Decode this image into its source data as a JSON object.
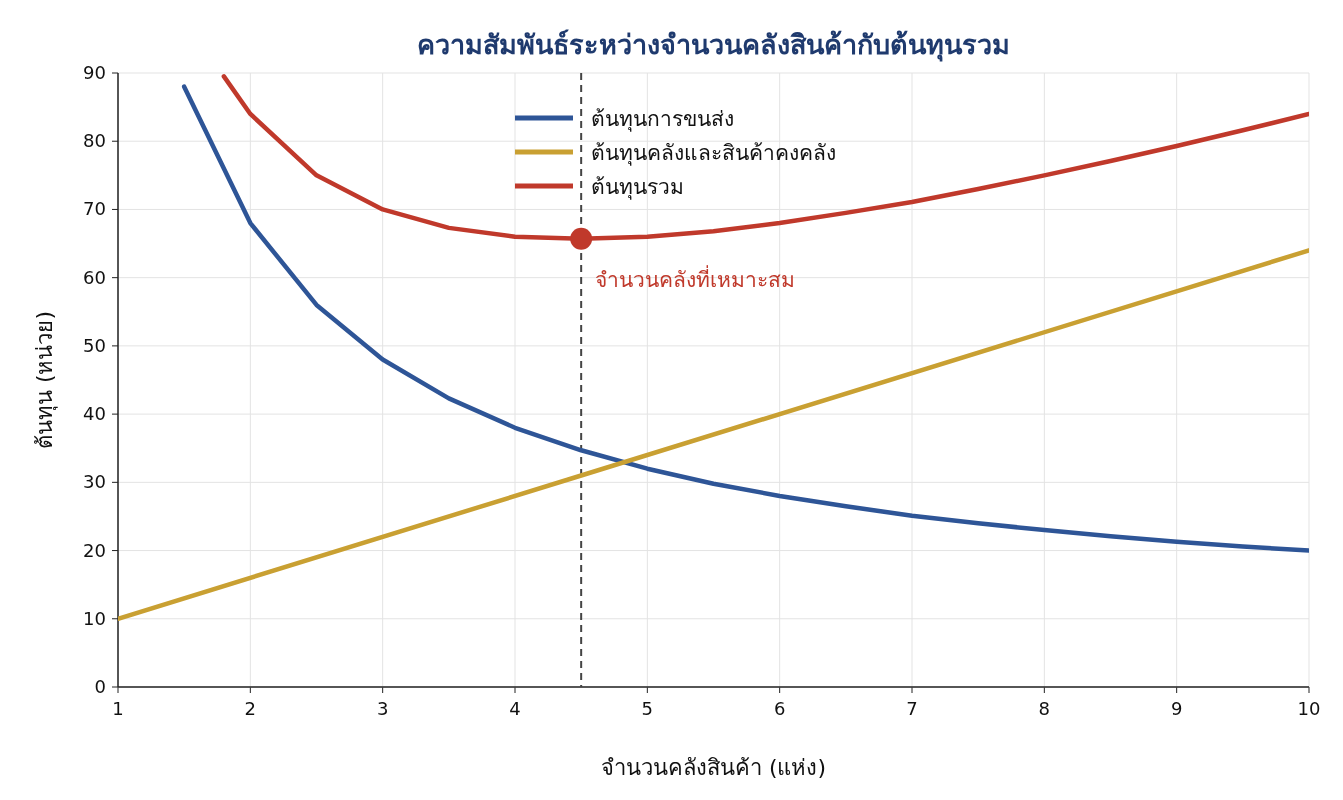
{
  "chart_data": {
    "type": "line",
    "title": "ความสัมพันธ์ระหว่างจำนวนคลังสินค้ากับต้นทุนรวม",
    "xlabel": "จำนวนคลังสินค้า (แห่ง)",
    "ylabel": "ต้นทุน (หน่วย)",
    "xlim": [
      1,
      10
    ],
    "ylim": [
      0,
      90
    ],
    "xticks": [
      1,
      2,
      3,
      4,
      5,
      6,
      7,
      8,
      9,
      10
    ],
    "yticks": [
      0,
      10,
      20,
      30,
      40,
      50,
      60,
      70,
      80,
      90
    ],
    "grid": true,
    "legend": "top",
    "line_style": "solid",
    "series": [
      {
        "name": "ต้นทุนการขนส่ง",
        "color": "#2e5597",
        "x": [
          1.5,
          2,
          2.5,
          3,
          3.5,
          4,
          4.5,
          5,
          5.5,
          6,
          6.5,
          7,
          7.5,
          8,
          8.5,
          9,
          9.5,
          10
        ],
        "values": [
          88,
          68,
          56,
          48,
          42.3,
          38,
          34.7,
          32,
          29.8,
          28,
          26.5,
          25.1,
          24,
          23,
          22.1,
          21.3,
          20.6,
          20
        ]
      },
      {
        "name": "ต้นทุนคลังและสินค้าคงคลัง",
        "color": "#c9a032",
        "x": [
          1,
          4.5,
          10
        ],
        "values": [
          10,
          31,
          64
        ]
      },
      {
        "name": "ต้นทุนรวม",
        "color": "#c0392b",
        "x": [
          1.8,
          2,
          2.5,
          3,
          3.5,
          4,
          4.5,
          5,
          5.5,
          6,
          6.5,
          7,
          7.5,
          8,
          8.5,
          9,
          9.5,
          10
        ],
        "values": [
          89.5,
          84,
          75,
          70,
          67.3,
          66,
          65.7,
          66,
          66.8,
          68,
          69.5,
          71.1,
          73,
          75,
          77.1,
          79.3,
          81.6,
          84
        ]
      },
      {
        "type": "scatter",
        "marker": "circle",
        "color": "#c0392b",
        "x": [
          4.5
        ],
        "values": [
          65.7
        ]
      }
    ],
    "ref_lines": [
      {
        "axis": "x",
        "value": 4.5,
        "color": "#444444",
        "line_style": "dashed"
      }
    ],
    "annotations": [
      {
        "text": "จำนวนคลังที่เหมาะสม",
        "x": 4.5,
        "y": 65.7
      }
    ]
  }
}
